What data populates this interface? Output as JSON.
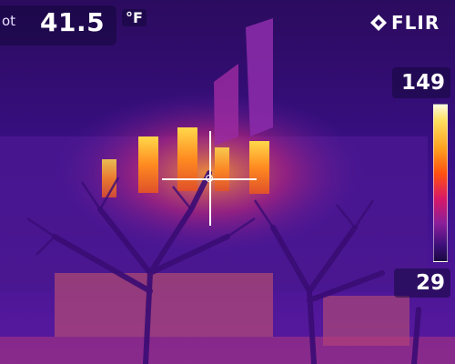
{
  "spot": {
    "label": "ot",
    "value": "41.5",
    "unit": "°F"
  },
  "brand": {
    "name": "FLIR",
    "icon": "flir-logo-icon"
  },
  "range": {
    "max": "149",
    "min": "29"
  },
  "palette": {
    "name": "iron",
    "colors": [
      "#fffbe0",
      "#ffe060",
      "#ffa020",
      "#ff5010",
      "#d81868",
      "#8a1e9a",
      "#3c0f7a",
      "#1a0840"
    ]
  },
  "crosshair": {
    "icon": "crosshair-icon"
  }
}
